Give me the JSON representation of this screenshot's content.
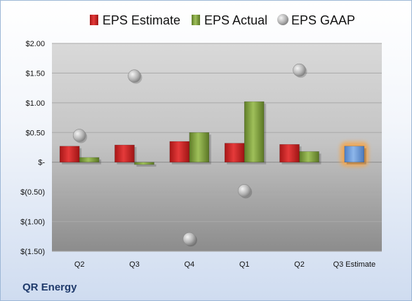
{
  "company_name": "QR Energy",
  "colors": {
    "estimate": "#d42a2a",
    "actual": "#7f9e3c",
    "gaap": "#b9b9b9",
    "highlight_estimate": "#6b9ad8",
    "highlight_glow": "#f5a54a"
  },
  "chart_data": {
    "type": "bar",
    "title": "",
    "xlabel": "",
    "ylabel": "",
    "categories": [
      "Q2",
      "Q3",
      "Q4",
      "Q1",
      "Q2",
      "Q3 Estimate"
    ],
    "ylim": [
      -1.5,
      2.0
    ],
    "y_ticks": [
      2.0,
      1.5,
      1.0,
      0.5,
      0,
      -0.5,
      -1.0,
      -1.5
    ],
    "y_tick_labels": [
      "$2.00",
      "$1.50",
      "$1.00",
      "$0.50",
      "$-",
      "$(0.50)",
      "$(1.00)",
      "$(1.50)"
    ],
    "legend_position": "top",
    "grid": true,
    "series": [
      {
        "name": "EPS Estimate",
        "kind": "bar",
        "values": [
          0.27,
          0.29,
          0.35,
          0.32,
          0.3,
          0.27
        ]
      },
      {
        "name": "EPS Actual",
        "kind": "bar",
        "values": [
          0.08,
          -0.04,
          0.5,
          1.02,
          0.18,
          null
        ]
      },
      {
        "name": "EPS GAAP",
        "kind": "marker",
        "values": [
          0.45,
          1.45,
          -1.29,
          -0.48,
          1.55,
          null
        ]
      }
    ]
  }
}
